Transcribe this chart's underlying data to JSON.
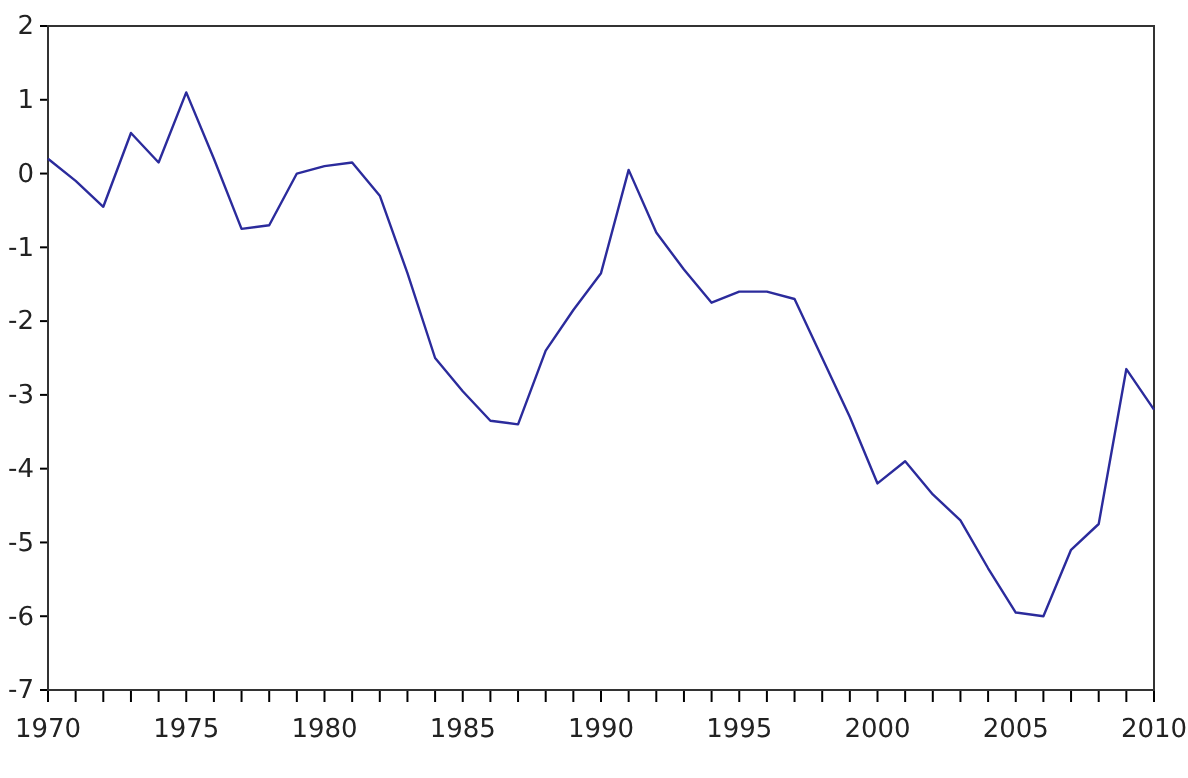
{
  "chart_data": {
    "type": "line",
    "x": [
      1970,
      1971,
      1972,
      1973,
      1974,
      1975,
      1976,
      1977,
      1978,
      1979,
      1980,
      1981,
      1982,
      1983,
      1984,
      1985,
      1986,
      1987,
      1988,
      1989,
      1990,
      1991,
      1992,
      1993,
      1994,
      1995,
      1996,
      1997,
      1998,
      1999,
      2000,
      2001,
      2002,
      2003,
      2004,
      2005,
      2006,
      2007,
      2008,
      2009,
      2010
    ],
    "series": [
      {
        "color": "#2b2b9c",
        "values": [
          0.2,
          -0.1,
          -0.45,
          0.55,
          0.15,
          1.1,
          0.2,
          -0.75,
          -0.7,
          0.0,
          0.1,
          0.15,
          -0.3,
          -1.35,
          -2.5,
          -2.95,
          -3.35,
          -3.4,
          -2.4,
          -1.85,
          -1.35,
          0.05,
          -0.8,
          -1.3,
          -1.75,
          -1.6,
          -1.6,
          -1.7,
          -2.5,
          -3.3,
          -4.2,
          -3.9,
          -4.35,
          -4.7,
          -5.35,
          -5.95,
          -6.0,
          -5.1,
          -4.75,
          -2.65,
          -3.2
        ]
      }
    ],
    "xlim": [
      1970,
      2010
    ],
    "ylim": [
      -7,
      2
    ],
    "xticks": [
      1970,
      {
        "value": 1971,
        "label": null
      },
      {
        "value": 1972,
        "label": null
      },
      {
        "value": 1973,
        "label": null
      },
      {
        "value": 1974,
        "label": null
      },
      1975,
      {
        "value": 1976,
        "label": null
      },
      {
        "value": 1977,
        "label": null
      },
      {
        "value": 1978,
        "label": null
      },
      {
        "value": 1979,
        "label": null
      },
      1980,
      {
        "value": 1981,
        "label": null
      },
      {
        "value": 1982,
        "label": null
      },
      {
        "value": 1983,
        "label": null
      },
      {
        "value": 1984,
        "label": null
      },
      1985,
      {
        "value": 1986,
        "label": null
      },
      {
        "value": 1987,
        "label": null
      },
      {
        "value": 1988,
        "label": null
      },
      {
        "value": 1989,
        "label": null
      },
      1990,
      {
        "value": 1991,
        "label": null
      },
      {
        "value": 1992,
        "label": null
      },
      {
        "value": 1993,
        "label": null
      },
      {
        "value": 1994,
        "label": null
      },
      1995,
      {
        "value": 1996,
        "label": null
      },
      {
        "value": 1997,
        "label": null
      },
      {
        "value": 1998,
        "label": null
      },
      {
        "value": 1999,
        "label": null
      },
      2000,
      {
        "value": 2001,
        "label": null
      },
      {
        "value": 2002,
        "label": null
      },
      {
        "value": 2003,
        "label": null
      },
      {
        "value": 2004,
        "label": null
      },
      2005,
      {
        "value": 2006,
        "label": null
      },
      {
        "value": 2007,
        "label": null
      },
      {
        "value": 2008,
        "label": null
      },
      {
        "value": 2009,
        "label": null
      },
      2010
    ],
    "yticks": [
      -7,
      -6,
      -5,
      -4,
      -3,
      -2,
      -1,
      0,
      1,
      2
    ],
    "grid": false,
    "marker": "none",
    "line_style": "solid"
  }
}
